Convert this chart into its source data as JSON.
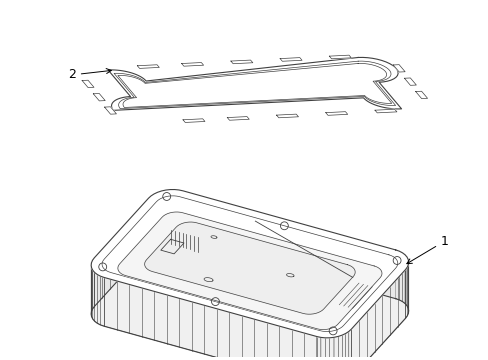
{
  "background_color": "#ffffff",
  "line_color": "#404040",
  "label_color": "#000000",
  "label_fontsize": 9,
  "fig_width": 4.89,
  "fig_height": 3.6,
  "dpi": 100,
  "part1_label": "1",
  "part2_label": "2"
}
